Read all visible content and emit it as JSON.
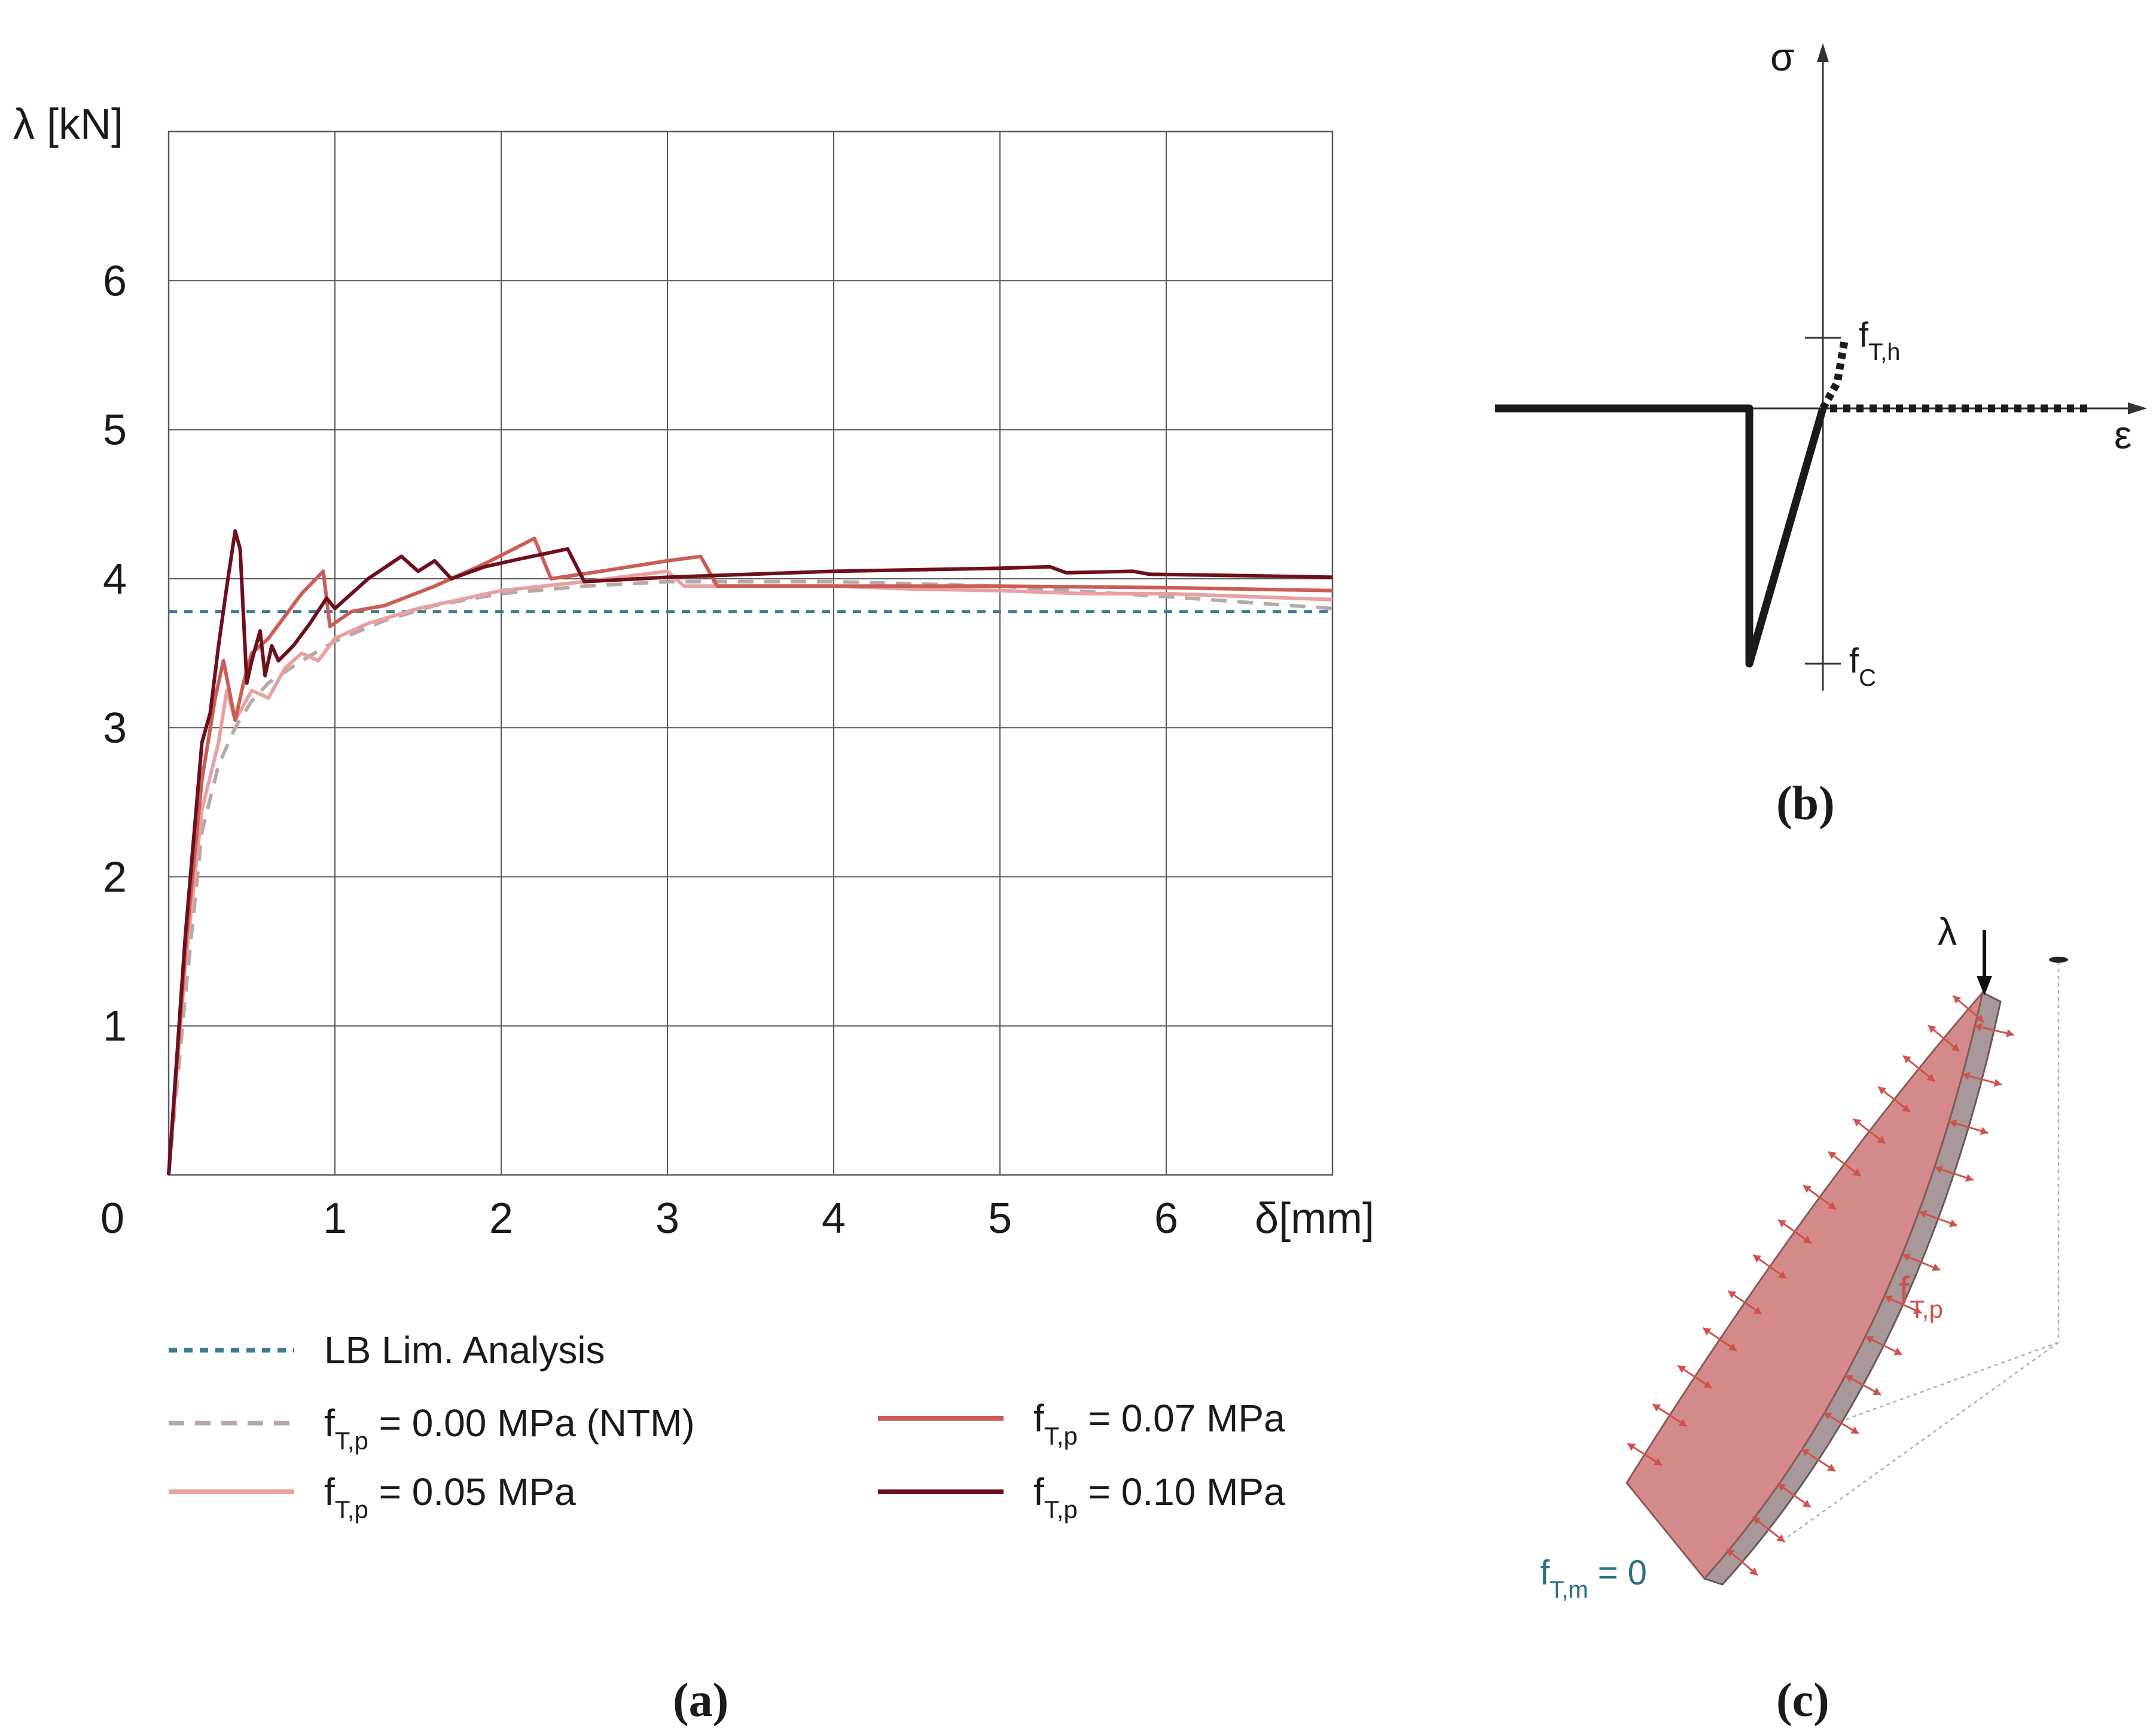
{
  "chart_data": [
    {
      "type": "line",
      "panel": "(a)",
      "ylabel": "λ [kN]",
      "xlabel": "δ[mm]",
      "origin_label": "0",
      "xlim": [
        0,
        7
      ],
      "ylim": [
        0,
        7
      ],
      "xticks": [
        1,
        2,
        3,
        4,
        5,
        6
      ],
      "yticks": [
        1,
        2,
        3,
        4,
        5,
        6
      ],
      "grid": true,
      "legend_position": "bottom",
      "series": [
        {
          "name": "LB Lim. Analysis",
          "color": "#3d7c8c",
          "dash": "dotted",
          "x": [
            0,
            7
          ],
          "y": [
            3.78,
            3.78
          ]
        },
        {
          "name": "f_T,p = 0.00 MPa (NTM)",
          "legend_prefix": "f",
          "legend_sub": "T,p",
          "legend_suffix": " = 0.00 MPa (NTM)",
          "color": "#b8a8a8",
          "dash": "dashed",
          "x": [
            0,
            0.1,
            0.2,
            0.3,
            0.4,
            0.5,
            0.6,
            0.8,
            1.0,
            1.3,
            1.6,
            2.0,
            2.5,
            3.0,
            4.0,
            5.0,
            6.0,
            7.0
          ],
          "y": [
            0,
            1.2,
            2.3,
            2.75,
            3.0,
            3.18,
            3.3,
            3.45,
            3.58,
            3.72,
            3.82,
            3.9,
            3.95,
            3.98,
            3.98,
            3.95,
            3.88,
            3.8
          ]
        },
        {
          "name": "f_T,p = 0.05 MPa",
          "legend_prefix": "f",
          "legend_sub": "T,p",
          "legend_suffix": " = 0.05 MPa",
          "color": "#e8a0a0",
          "dash": "solid",
          "x": [
            0,
            0.1,
            0.2,
            0.3,
            0.35,
            0.4,
            0.5,
            0.6,
            0.7,
            0.8,
            0.9,
            1.0,
            1.2,
            1.5,
            2.0,
            2.5,
            3.0,
            3.1,
            3.5,
            4.0,
            4.5,
            5.0,
            5.5,
            6.0,
            6.5,
            7.0
          ],
          "y": [
            0,
            1.4,
            2.45,
            2.9,
            3.25,
            3.05,
            3.25,
            3.2,
            3.4,
            3.5,
            3.45,
            3.6,
            3.7,
            3.8,
            3.92,
            3.98,
            4.05,
            3.95,
            3.95,
            3.95,
            3.93,
            3.92,
            3.9,
            3.9,
            3.88,
            3.86
          ]
        },
        {
          "name": "f_T,p = 0.07 MPa",
          "legend_prefix": "f",
          "legend_sub": "T,p",
          "legend_suffix": " = 0.07 MPa",
          "color": "#cc5c56",
          "dash": "solid",
          "x": [
            0,
            0.1,
            0.2,
            0.28,
            0.33,
            0.4,
            0.45,
            0.5,
            0.6,
            0.7,
            0.8,
            0.93,
            0.97,
            1.1,
            1.3,
            1.6,
            1.9,
            2.2,
            2.3,
            2.6,
            3.0,
            3.2,
            3.3,
            3.6,
            4.0,
            5.0,
            6.0,
            7.0
          ],
          "y": [
            0,
            1.5,
            2.65,
            3.2,
            3.45,
            3.05,
            3.3,
            3.5,
            3.6,
            3.75,
            3.9,
            4.05,
            3.68,
            3.78,
            3.82,
            3.95,
            4.1,
            4.27,
            4.0,
            4.05,
            4.12,
            4.15,
            3.95,
            3.95,
            3.95,
            3.95,
            3.94,
            3.92
          ]
        },
        {
          "name": "f_T,p = 0.10 MPa",
          "legend_prefix": "f",
          "legend_sub": "T,p",
          "legend_suffix": " = 0.10 MPa",
          "color": "#6e0f1c",
          "dash": "solid",
          "x": [
            0,
            0.1,
            0.2,
            0.25,
            0.3,
            0.35,
            0.4,
            0.43,
            0.47,
            0.5,
            0.55,
            0.58,
            0.62,
            0.66,
            0.75,
            0.85,
            0.95,
            1.0,
            1.2,
            1.4,
            1.5,
            1.6,
            1.7,
            1.9,
            2.1,
            2.4,
            2.5,
            3.0,
            3.5,
            4.0,
            4.5,
            5.0,
            5.3,
            5.4,
            5.8,
            5.9,
            6.5,
            7.0
          ],
          "y": [
            0,
            1.6,
            2.9,
            3.1,
            3.55,
            3.95,
            4.32,
            4.2,
            3.3,
            3.45,
            3.65,
            3.35,
            3.55,
            3.45,
            3.55,
            3.7,
            3.87,
            3.8,
            4.0,
            4.15,
            4.05,
            4.12,
            4.0,
            4.08,
            4.13,
            4.2,
            3.98,
            4.01,
            4.03,
            4.05,
            4.06,
            4.07,
            4.08,
            4.04,
            4.05,
            4.03,
            4.02,
            4.01
          ]
        }
      ]
    },
    {
      "type": "diagram",
      "panel": "(b)",
      "ylabel": "σ",
      "xlabel": "ε",
      "annotations": [
        {
          "main": "f",
          "sub": "T,h"
        },
        {
          "main": "f",
          "sub": "C"
        }
      ]
    },
    {
      "type": "diagram",
      "panel": "(c)",
      "load_label": "λ",
      "labels": [
        {
          "main": "f",
          "sub": "T,p",
          "color": "#d0524c"
        },
        {
          "main": "f",
          "sub": "T,m",
          "suffix": " = 0",
          "color": "#2e6f84"
        }
      ]
    }
  ],
  "captions": {
    "a": "(a)",
    "b": "(b)",
    "c": "(c)"
  }
}
